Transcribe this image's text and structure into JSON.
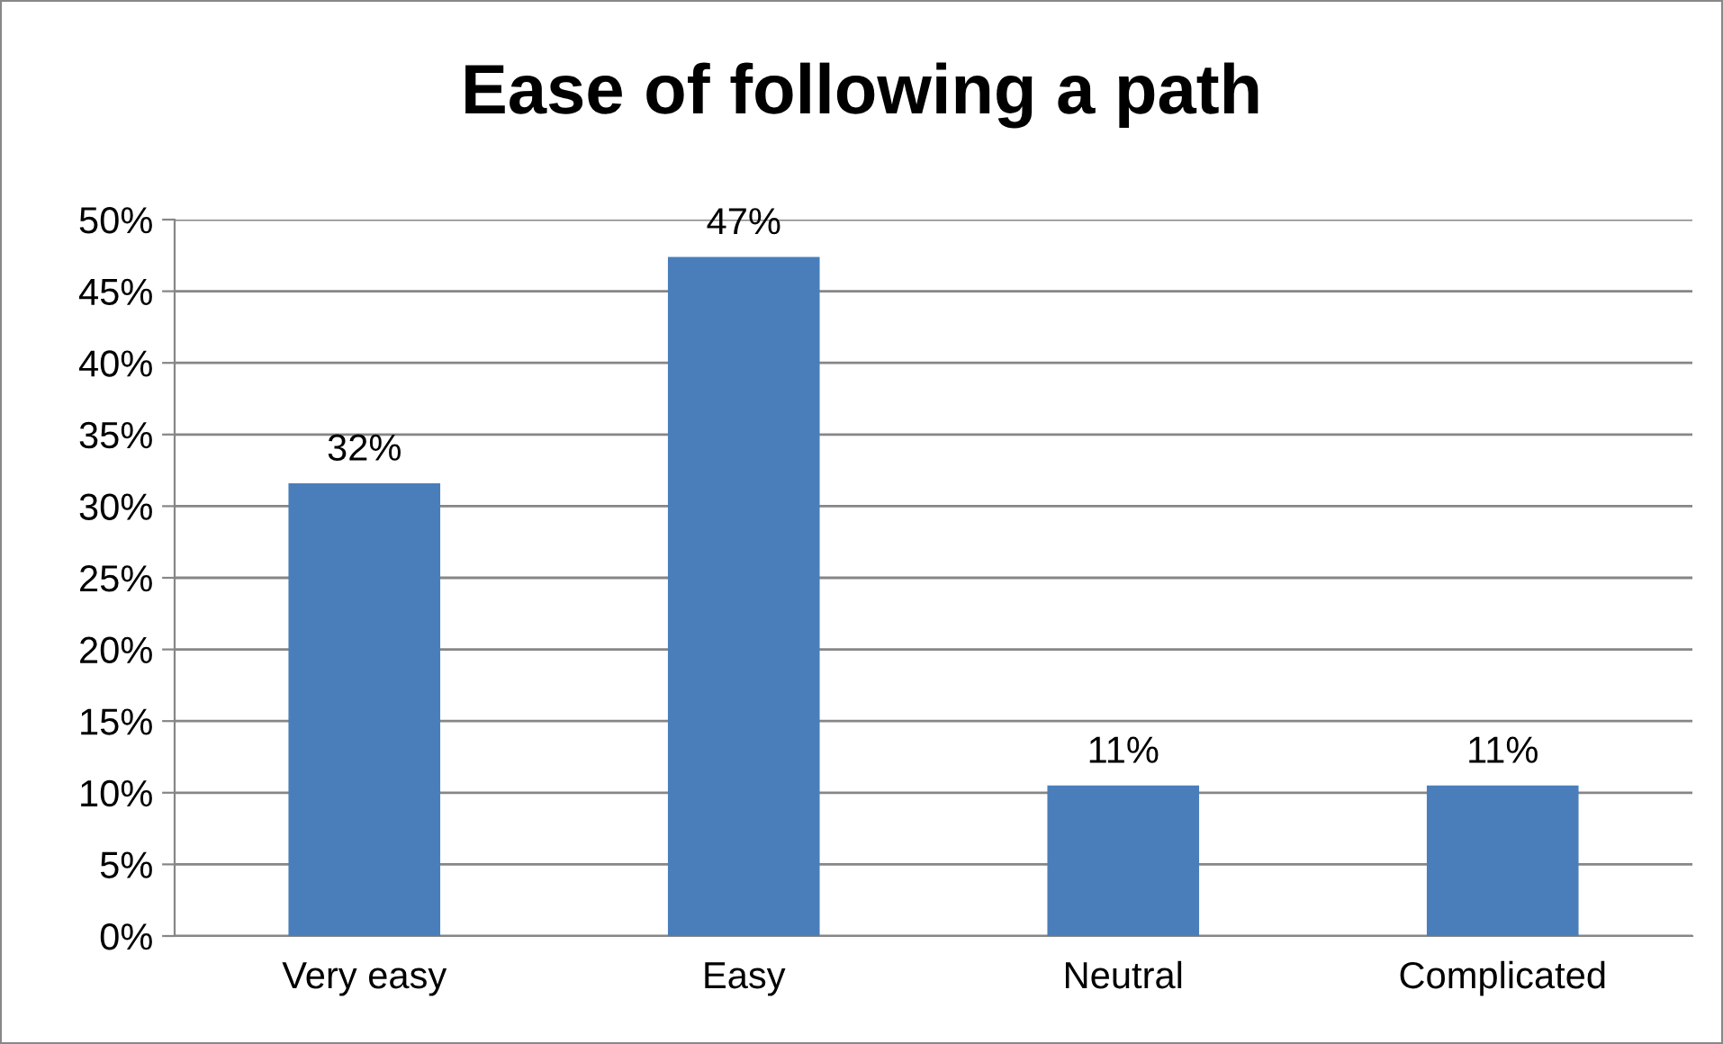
{
  "chart_data": {
    "type": "bar",
    "title": "Ease of following a path",
    "categories": [
      "Very easy",
      "Easy",
      "Neutral",
      "Complicated"
    ],
    "values": [
      31.6,
      47.4,
      10.5,
      10.5
    ],
    "value_labels": [
      "32%",
      "47%",
      "11%",
      "11%"
    ],
    "color": "#4a7ebb",
    "ylim": [
      0,
      50
    ],
    "yticks": [
      {
        "value": 0,
        "label": "0%"
      },
      {
        "value": 5,
        "label": "5%"
      },
      {
        "value": 10,
        "label": "10%"
      },
      {
        "value": 15,
        "label": "15%"
      },
      {
        "value": 20,
        "label": "20%"
      },
      {
        "value": 25,
        "label": "25%"
      },
      {
        "value": 30,
        "label": "30%"
      },
      {
        "value": 35,
        "label": "35%"
      },
      {
        "value": 40,
        "label": "40%"
      },
      {
        "value": 45,
        "label": "45%"
      },
      {
        "value": 50,
        "label": "50%"
      }
    ],
    "grid": "y",
    "legend": false
  }
}
